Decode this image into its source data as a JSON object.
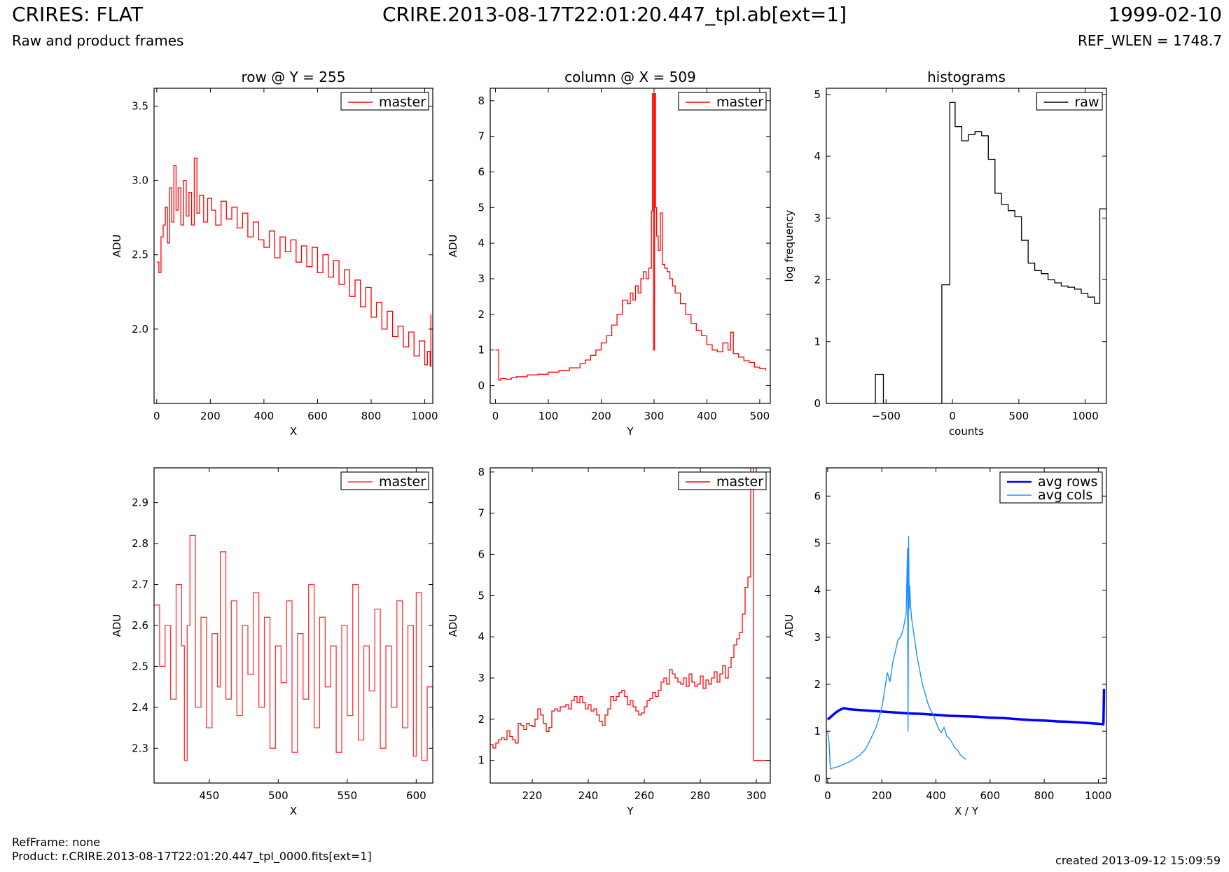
{
  "header": {
    "title_left": "CRIRES: FLAT",
    "title_center": "CRIRE.2013-08-17T22:01:20.447_tpl.ab[ext=1]",
    "title_right": "1999-02-10",
    "subtitle_left": "Raw and product frames",
    "subtitle_right": "REF_WLEN = 1748.7"
  },
  "footer": {
    "refframe": "RefFrame: none",
    "product": "Product: r.CRIRE.2013-08-17T22:01:20.447_tpl_0000.fits[ext=1]",
    "created": "created 2013-09-12 15:09:59"
  },
  "chart_data": [
    {
      "id": "row",
      "type": "line",
      "title": "row @ Y = 255",
      "xlabel": "X",
      "ylabel": "ADU",
      "xlim": [
        -10,
        1030
      ],
      "ylim": [
        1.5,
        3.62
      ],
      "xticks": [
        0,
        200,
        400,
        600,
        800,
        1000
      ],
      "xtick_labels": [
        "0",
        "200",
        "400",
        "600",
        "800",
        "1000"
      ],
      "yticks": [
        2.0,
        2.5,
        3.0,
        3.5
      ],
      "ytick_labels": [
        "2.0",
        "2.5",
        "3.0",
        "3.5"
      ],
      "legend": [
        "master"
      ],
      "legend_loc": "upper right",
      "series": [
        {
          "name": "master",
          "color": "#ff0000",
          "step": true,
          "x": [
            0,
            8,
            16,
            24,
            32,
            40,
            48,
            56,
            64,
            72,
            80,
            90,
            100,
            110,
            120,
            130,
            140,
            150,
            160,
            175,
            190,
            205,
            220,
            240,
            260,
            280,
            300,
            320,
            340,
            360,
            380,
            400,
            420,
            440,
            460,
            480,
            500,
            520,
            540,
            560,
            580,
            600,
            620,
            640,
            660,
            680,
            700,
            720,
            740,
            760,
            780,
            800,
            820,
            840,
            860,
            880,
            900,
            920,
            940,
            960,
            980,
            1000,
            1010,
            1020,
            1023
          ],
          "y": [
            2.45,
            2.38,
            2.62,
            2.7,
            2.82,
            2.58,
            2.95,
            2.72,
            3.1,
            2.8,
            2.95,
            2.7,
            3.0,
            2.76,
            2.92,
            2.7,
            3.15,
            2.78,
            2.9,
            2.72,
            2.88,
            2.8,
            2.7,
            2.86,
            2.74,
            2.82,
            2.68,
            2.78,
            2.62,
            2.72,
            2.6,
            2.55,
            2.66,
            2.48,
            2.62,
            2.52,
            2.6,
            2.45,
            2.56,
            2.42,
            2.55,
            2.38,
            2.5,
            2.35,
            2.46,
            2.3,
            2.4,
            2.22,
            2.33,
            2.15,
            2.28,
            2.08,
            2.18,
            2.0,
            2.12,
            1.95,
            2.02,
            1.88,
            1.98,
            1.82,
            1.92,
            1.76,
            1.85,
            1.75,
            2.1
          ]
        }
      ]
    },
    {
      "id": "column",
      "type": "line",
      "title": "column @ X = 509",
      "xlabel": "Y",
      "ylabel": "ADU",
      "xlim": [
        -10,
        520
      ],
      "ylim": [
        -0.5,
        8.35
      ],
      "xticks": [
        0,
        100,
        200,
        300,
        400,
        500
      ],
      "xtick_labels": [
        "0",
        "100",
        "200",
        "300",
        "400",
        "500"
      ],
      "yticks": [
        0,
        1,
        2,
        3,
        4,
        5,
        6,
        7,
        8
      ],
      "ytick_labels": [
        "0",
        "1",
        "2",
        "3",
        "4",
        "5",
        "6",
        "7",
        "8"
      ],
      "legend": [
        "master"
      ],
      "legend_loc": "upper right",
      "series": [
        {
          "name": "master",
          "color": "#ff0000",
          "step": true,
          "x": [
            0,
            6,
            10,
            20,
            30,
            40,
            60,
            80,
            100,
            120,
            140,
            160,
            170,
            180,
            190,
            200,
            210,
            220,
            230,
            240,
            250,
            255,
            260,
            265,
            270,
            275,
            280,
            285,
            290,
            295,
            297,
            299,
            301,
            303,
            305,
            308,
            312,
            316,
            320,
            325,
            330,
            335,
            340,
            350,
            360,
            370,
            380,
            390,
            400,
            410,
            420,
            430,
            440,
            445,
            450,
            460,
            470,
            480,
            490,
            500,
            511
          ],
          "y": [
            1.0,
            0.15,
            0.2,
            0.18,
            0.22,
            0.25,
            0.3,
            0.32,
            0.38,
            0.42,
            0.5,
            0.62,
            0.72,
            0.85,
            1.0,
            1.2,
            1.4,
            1.7,
            2.0,
            2.4,
            2.3,
            2.6,
            2.4,
            2.8,
            2.6,
            3.0,
            3.2,
            3.0,
            3.3,
            4.9,
            8.2,
            1.0,
            8.2,
            5.0,
            4.2,
            3.8,
            4.85,
            3.4,
            3.3,
            3.2,
            3.0,
            2.8,
            2.6,
            2.3,
            2.0,
            1.75,
            1.55,
            1.4,
            1.15,
            1.0,
            0.95,
            1.2,
            1.0,
            1.5,
            0.9,
            0.8,
            0.7,
            0.65,
            0.52,
            0.48,
            0.42
          ]
        }
      ]
    },
    {
      "id": "histograms",
      "type": "line",
      "title": "histograms",
      "xlabel": "counts",
      "ylabel": "log frequency",
      "xlim": [
        -950,
        1160
      ],
      "ylim": [
        0,
        5.1
      ],
      "xticks": [
        -500,
        0,
        500,
        1000
      ],
      "xtick_labels": [
        "−500",
        "0",
        "500",
        "1000"
      ],
      "yticks": [
        0,
        1,
        2,
        3,
        4,
        5
      ],
      "ytick_labels": [
        "0",
        "1",
        "2",
        "3",
        "4",
        "5"
      ],
      "legend": [
        "raw"
      ],
      "legend_loc": "upper right",
      "series": [
        {
          "name": "raw",
          "color": "#000000",
          "step": true,
          "x": [
            -950,
            -580,
            -520,
            -80,
            -20,
            20,
            70,
            120,
            170,
            220,
            270,
            320,
            370,
            420,
            470,
            520,
            570,
            620,
            670,
            720,
            770,
            820,
            870,
            920,
            970,
            1020,
            1070,
            1110,
            1160
          ],
          "y": [
            0,
            0.47,
            0,
            1.92,
            4.87,
            4.48,
            4.25,
            4.35,
            4.4,
            4.33,
            3.95,
            3.4,
            3.22,
            3.12,
            3.02,
            2.64,
            2.27,
            2.15,
            2.1,
            2.0,
            1.95,
            1.9,
            1.88,
            1.85,
            1.78,
            1.72,
            1.62,
            3.15,
            3.15
          ]
        }
      ]
    },
    {
      "id": "row-zoom",
      "type": "line",
      "title": "",
      "xlabel": "X",
      "ylabel": "ADU",
      "xlim": [
        410,
        612
      ],
      "ylim": [
        2.215,
        2.985
      ],
      "xticks": [
        450,
        500,
        550,
        600
      ],
      "xtick_labels": [
        "450",
        "500",
        "550",
        "600"
      ],
      "yticks": [
        2.3,
        2.4,
        2.5,
        2.6,
        2.7,
        2.8,
        2.9
      ],
      "ytick_labels": [
        "2.3",
        "2.4",
        "2.5",
        "2.6",
        "2.7",
        "2.8",
        "2.9"
      ],
      "legend": [
        "master"
      ],
      "legend_loc": "upper right",
      "series": [
        {
          "name": "master",
          "color": "#ff3333",
          "step": true,
          "x": [
            410,
            414,
            418,
            422,
            426,
            430,
            432,
            434,
            436,
            440,
            444,
            448,
            452,
            456,
            458,
            462,
            466,
            470,
            474,
            478,
            482,
            486,
            490,
            494,
            498,
            502,
            506,
            510,
            514,
            518,
            522,
            526,
            530,
            534,
            538,
            542,
            546,
            550,
            554,
            558,
            562,
            566,
            570,
            574,
            578,
            582,
            586,
            590,
            594,
            598,
            600,
            604,
            608,
            612
          ],
          "y": [
            2.65,
            2.5,
            2.6,
            2.42,
            2.7,
            2.55,
            2.27,
            2.6,
            2.82,
            2.4,
            2.62,
            2.35,
            2.58,
            2.45,
            2.78,
            2.42,
            2.66,
            2.38,
            2.6,
            2.48,
            2.68,
            2.4,
            2.62,
            2.3,
            2.55,
            2.46,
            2.66,
            2.29,
            2.58,
            2.42,
            2.7,
            2.35,
            2.62,
            2.45,
            2.55,
            2.29,
            2.6,
            2.38,
            2.7,
            2.32,
            2.55,
            2.44,
            2.64,
            2.3,
            2.55,
            2.4,
            2.66,
            2.35,
            2.6,
            2.28,
            2.68,
            2.27,
            2.45,
            2.35
          ]
        }
      ]
    },
    {
      "id": "column-zoom",
      "type": "line",
      "title": "",
      "xlabel": "Y",
      "ylabel": "ADU",
      "xlim": [
        205,
        305
      ],
      "ylim": [
        0.45,
        8.1
      ],
      "xticks": [
        220,
        240,
        260,
        280,
        300
      ],
      "xtick_labels": [
        "220",
        "240",
        "260",
        "280",
        "300"
      ],
      "yticks": [
        1,
        2,
        3,
        4,
        5,
        6,
        7,
        8
      ],
      "ytick_labels": [
        "1",
        "2",
        "3",
        "4",
        "5",
        "6",
        "7",
        "8"
      ],
      "legend": [
        "master"
      ],
      "legend_loc": "upper right",
      "series": [
        {
          "name": "master",
          "color": "#ff0000",
          "step": true,
          "x": [
            205,
            206,
            207,
            208,
            209,
            210,
            211,
            212,
            213,
            214,
            215,
            216,
            217,
            218,
            219,
            220,
            221,
            222,
            223,
            224,
            225,
            226,
            227,
            228,
            229,
            230,
            231,
            232,
            233,
            234,
            235,
            236,
            237,
            238,
            239,
            240,
            241,
            242,
            243,
            244,
            245,
            246,
            247,
            248,
            249,
            250,
            251,
            252,
            253,
            254,
            255,
            256,
            257,
            258,
            259,
            260,
            261,
            262,
            263,
            264,
            265,
            266,
            267,
            268,
            269,
            270,
            271,
            272,
            273,
            274,
            275,
            276,
            277,
            278,
            279,
            280,
            281,
            282,
            283,
            284,
            285,
            286,
            287,
            288,
            289,
            290,
            291,
            292,
            293,
            294,
            295,
            296,
            297,
            298,
            299,
            300,
            301,
            302,
            303,
            304,
            305
          ],
          "y": [
            1.38,
            1.3,
            1.42,
            1.5,
            1.55,
            1.5,
            1.72,
            1.58,
            1.5,
            1.42,
            1.9,
            1.85,
            1.75,
            1.9,
            1.85,
            1.82,
            2.0,
            2.25,
            2.1,
            1.9,
            1.7,
            1.8,
            2.2,
            2.25,
            2.2,
            2.3,
            2.3,
            2.35,
            2.25,
            2.45,
            2.55,
            2.4,
            2.55,
            2.4,
            2.25,
            2.35,
            2.2,
            2.25,
            2.1,
            1.95,
            1.85,
            2.1,
            2.25,
            2.55,
            2.45,
            2.55,
            2.65,
            2.7,
            2.55,
            2.35,
            2.45,
            2.3,
            2.2,
            2.1,
            2.15,
            2.3,
            2.45,
            2.5,
            2.65,
            2.55,
            2.7,
            2.9,
            3.0,
            2.85,
            3.2,
            3.1,
            3.0,
            2.9,
            2.85,
            3.0,
            2.8,
            3.1,
            2.9,
            2.8,
            2.85,
            3.05,
            2.75,
            2.95,
            2.85,
            3.0,
            3.15,
            2.9,
            3.1,
            3.3,
            3.0,
            3.25,
            3.5,
            3.8,
            3.95,
            4.1,
            4.55,
            5.2,
            5.45,
            8.1,
            1.0,
            1.0,
            1.0,
            1.0,
            1.0,
            1.0,
            1.0
          ]
        }
      ]
    },
    {
      "id": "averages",
      "type": "line",
      "title": "",
      "xlabel": "X / Y",
      "ylabel": "ADU",
      "xlim": [
        -5,
        1030
      ],
      "ylim": [
        -0.1,
        6.6
      ],
      "xticks": [
        0,
        200,
        400,
        600,
        800,
        1000
      ],
      "xtick_labels": [
        "0",
        "200",
        "400",
        "600",
        "800",
        "1000"
      ],
      "yticks": [
        0,
        1,
        2,
        3,
        4,
        5,
        6
      ],
      "ytick_labels": [
        "0",
        "1",
        "2",
        "3",
        "4",
        "5",
        "6"
      ],
      "legend": [
        "avg rows",
        "avg cols"
      ],
      "legend_loc": "upper right",
      "series": [
        {
          "name": "avg rows",
          "color": "#0000ff",
          "width": 3.5,
          "step": false,
          "x": [
            0,
            10,
            20,
            30,
            40,
            50,
            60,
            80,
            100,
            150,
            200,
            250,
            300,
            350,
            400,
            450,
            500,
            550,
            600,
            650,
            700,
            750,
            800,
            850,
            900,
            950,
            1000,
            1018,
            1019,
            1020,
            1021
          ],
          "y": [
            1.25,
            1.3,
            1.35,
            1.4,
            1.44,
            1.47,
            1.49,
            1.47,
            1.46,
            1.44,
            1.42,
            1.4,
            1.38,
            1.37,
            1.35,
            1.33,
            1.32,
            1.31,
            1.29,
            1.28,
            1.26,
            1.24,
            1.23,
            1.21,
            1.2,
            1.18,
            1.16,
            1.15,
            1.18,
            1.5,
            1.9
          ]
        },
        {
          "name": "avg cols",
          "color": "#1e90ff",
          "width": 1.4,
          "step": false,
          "x": [
            0,
            5,
            10,
            20,
            40,
            60,
            80,
            100,
            120,
            140,
            160,
            180,
            200,
            210,
            220,
            230,
            240,
            250,
            260,
            270,
            280,
            290,
            295,
            297,
            299,
            301,
            303,
            306,
            310,
            315,
            320,
            330,
            340,
            350,
            360,
            370,
            380,
            390,
            400,
            410,
            420,
            430,
            440,
            450,
            460,
            470,
            480,
            490,
            500,
            511
          ],
          "y": [
            1.0,
            0.75,
            0.2,
            0.22,
            0.25,
            0.3,
            0.35,
            0.42,
            0.5,
            0.62,
            0.85,
            1.1,
            1.5,
            1.85,
            2.25,
            2.05,
            2.45,
            2.7,
            2.95,
            3.0,
            3.2,
            3.5,
            4.9,
            1.0,
            5.15,
            3.6,
            4.1,
            3.7,
            3.4,
            3.2,
            3.0,
            2.6,
            2.3,
            2.0,
            1.8,
            1.6,
            1.45,
            1.35,
            1.2,
            1.05,
            0.98,
            1.08,
            0.9,
            0.85,
            0.75,
            0.65,
            0.6,
            0.5,
            0.45,
            0.4
          ]
        }
      ]
    }
  ]
}
